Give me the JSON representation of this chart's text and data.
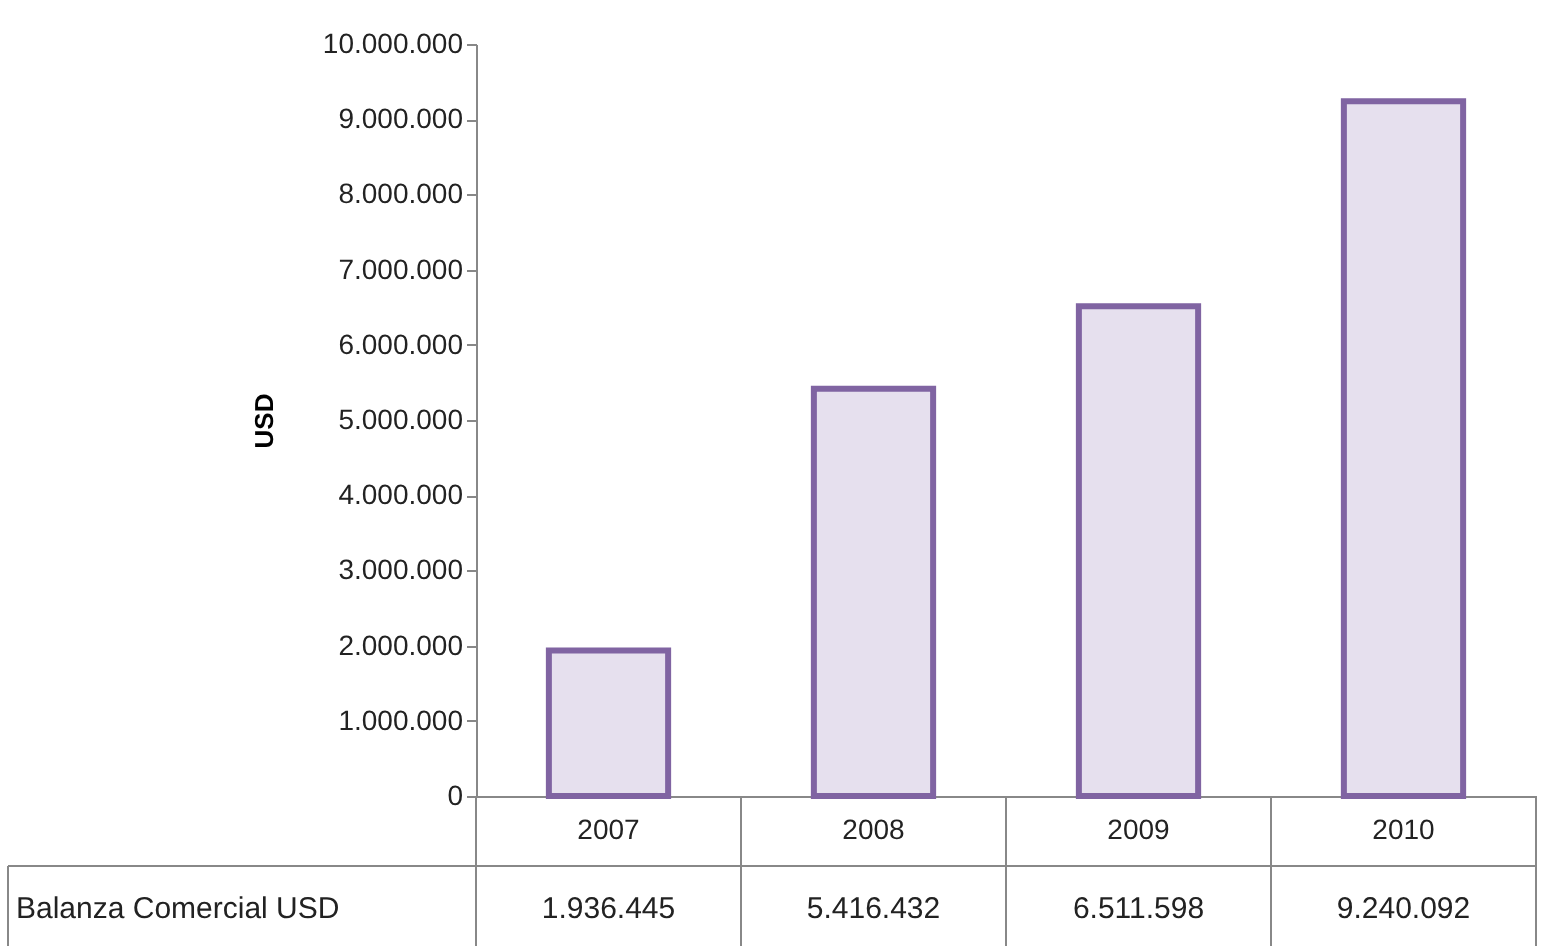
{
  "chart_data": {
    "type": "bar",
    "ylabel": "USD",
    "categories": [
      "2007",
      "2008",
      "2009",
      "2010"
    ],
    "series": [
      {
        "name": "Balanza Comercial USD",
        "color": "#e6e0ee",
        "values": [
          1936445,
          5416432,
          6511598,
          9240092
        ],
        "value_labels": [
          "1.936.445",
          "5.416.432",
          "6.511.598",
          "9.240.092"
        ]
      }
    ],
    "ylim": [
      0,
      10000000
    ],
    "yticks": [
      0,
      {
        "value": 1000000,
        "label": "1.000.000"
      },
      {
        "value": 2000000,
        "label": "2.000.000"
      },
      {
        "value": 3000000,
        "label": "3.000.000"
      },
      {
        "value": 4000000,
        "label": "4.000.000"
      },
      {
        "value": 5000000,
        "label": "5.000.000"
      },
      {
        "value": 6000000,
        "label": "6.000.000"
      },
      {
        "value": 7000000,
        "label": "7.000.000"
      },
      {
        "value": 8000000,
        "label": "8.000.000"
      },
      {
        "value": 9000000,
        "label": "9.000.000"
      },
      {
        "value": 10000000,
        "label": "10.000.000"
      }
    ],
    "grid": false
  }
}
